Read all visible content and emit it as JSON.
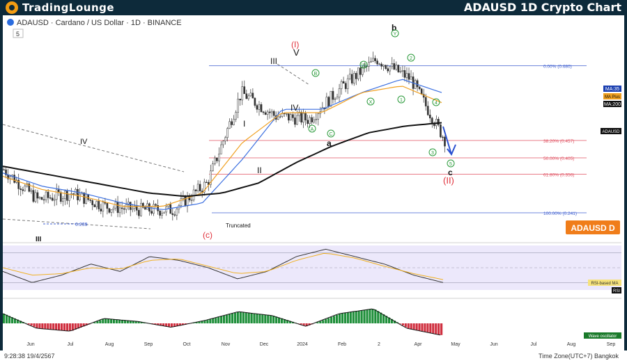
{
  "brand": {
    "name": "TradingLounge"
  },
  "header": {
    "title": "ADAUSD 1D Crypto Chart"
  },
  "symbol": {
    "description": "ADAUSD · Cardano / US Dollar · 1D · BINANCE",
    "count": "5"
  },
  "colors": {
    "brand": "#0d2a3a",
    "badge": "#f07d1a",
    "ma35": "#3b6fe0",
    "ma_plus": "#f0a020",
    "ma200": "#111111",
    "fib": "#e05060",
    "fib_top": "#4060d0",
    "rsi": "#333333",
    "rsi_ma": "#f0b020"
  },
  "chart_data": [
    {
      "type": "line",
      "title": "",
      "x_axis": [
        "Jun",
        "Jul",
        "Aug",
        "Sep",
        "Oct",
        "Nov",
        "Dec",
        "2024",
        "Feb",
        "2",
        "Apr",
        "May",
        "Jun",
        "Jul",
        "Aug",
        "Sep"
      ],
      "series": [
        {
          "name": "ADAUSD",
          "values": [
            0.37,
            0.28,
            0.3,
            0.26,
            0.25,
            0.25,
            0.33,
            0.6,
            0.53,
            0.52,
            0.62,
            0.7,
            0.64,
            0.46
          ]
        },
        {
          "name": "MA:35",
          "values": [
            0.36,
            0.32,
            0.3,
            0.27,
            0.25,
            0.27,
            0.4,
            0.55,
            0.55,
            0.6,
            0.64,
            0.6
          ]
        },
        {
          "name": "MA Plus",
          "values": [
            0.35,
            0.31,
            0.29,
            0.26,
            0.26,
            0.3,
            0.45,
            0.54,
            0.54,
            0.6,
            0.62,
            0.57
          ]
        },
        {
          "name": "MA:200",
          "values": [
            0.38,
            0.36,
            0.34,
            0.32,
            0.3,
            0.29,
            0.3,
            0.33,
            0.39,
            0.44,
            0.48,
            0.5,
            0.51
          ]
        }
      ],
      "fib_levels": [
        {
          "label": "0.00% (0.680)",
          "value": 0.68
        },
        {
          "label": "38.20% (0.457)",
          "value": 0.457
        },
        {
          "label": "50.00% (0.405)",
          "value": 0.405
        },
        {
          "label": "61.80% (0.356)",
          "value": 0.356
        },
        {
          "label": "100.00% (0.241)",
          "value": 0.241
        }
      ],
      "low_label": "0.239",
      "annotations": {
        "wave_III_left": "III",
        "wave_IV_left": "IV",
        "wave_c": "(c)",
        "truncated": "Truncated",
        "wave_I": "I",
        "wave_II": "II",
        "wave_III": "III",
        "wave_IV": "IV",
        "wave_V": "V",
        "wave_I_red": "(I)",
        "wave_II_red": "(II)",
        "wave_a": "a",
        "wave_b": "b",
        "wave_c_small": "c",
        "circ_w": "W",
        "circ_x": "X",
        "circ_y": "Y",
        "circ_a": "A",
        "circ_b": "B",
        "circ_c": "C",
        "circ_1": "1",
        "circ_2": "2",
        "circ_3": "3",
        "circ_4": "4",
        "circ_5": "5"
      },
      "price_tags": [
        "MA:35",
        "MA Plus",
        "MA:200",
        "ADAUSD"
      ],
      "badge": "ADAUSD D"
    },
    {
      "type": "line",
      "title": "",
      "series": [
        {
          "name": "RSI",
          "values": [
            45,
            30,
            40,
            55,
            45,
            65,
            60,
            50,
            35,
            45,
            65,
            75,
            65,
            55,
            40,
            30
          ]
        },
        {
          "name": "RSI-based MA",
          "values": [
            50,
            40,
            42,
            50,
            48,
            60,
            62,
            52,
            42,
            45,
            60,
            70,
            63,
            52,
            42,
            34
          ]
        }
      ],
      "tags": [
        "RSI-based MA",
        "RSI"
      ]
    },
    {
      "type": "bar",
      "title": "",
      "series": [
        {
          "name": "Wave oscillator",
          "values": [
            0.1,
            -0.05,
            -0.08,
            0.05,
            0.02,
            -0.04,
            0.03,
            0.12,
            0.08,
            -0.03,
            0.1,
            0.15,
            -0.05,
            -0.12
          ]
        }
      ],
      "tag": "Wave oscillator"
    }
  ],
  "footer": {
    "time": "9:28:38 19/4/2567",
    "timezone": "Time Zone(UTC+7) Bangkok"
  }
}
